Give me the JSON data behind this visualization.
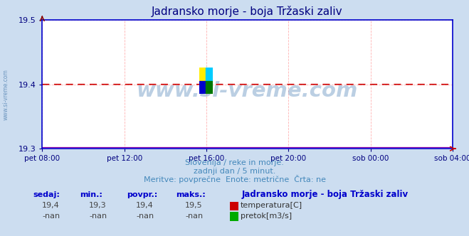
{
  "title": "Jadransko morje - boja Tržaski zaliv",
  "title_color": "#000080",
  "bg_color": "#ccddf0",
  "plot_bg_color": "#ffffff",
  "grid_color": "#ffaaaa",
  "axis_color": "#0000cc",
  "tick_color": "#000080",
  "ylim": [
    19.3,
    19.5
  ],
  "yticks": [
    19.3,
    19.4,
    19.5
  ],
  "xtick_labels": [
    "pet 08:00",
    "pet 12:00",
    "pet 16:00",
    "pet 20:00",
    "sob 00:00",
    "sob 04:00"
  ],
  "xtick_positions": [
    0.0,
    0.2,
    0.4,
    0.6,
    0.8,
    1.0
  ],
  "line_color": "#cc0000",
  "watermark": "www.si-vreme.com",
  "watermark_color": "#5588bb",
  "watermark_alpha": 0.4,
  "side_text": "www.si-vreme.com",
  "side_text_color": "#4477aa",
  "subtitle1": "Slovenija / reke in morje.",
  "subtitle2": "zadnji dan / 5 minut.",
  "subtitle3": "Meritve: povprečne  Enote: metrične  Črta: ne",
  "subtitle_color": "#4488bb",
  "footer_color": "#0000cc",
  "footer_label1": "sedaj:",
  "footer_label2": "min.:",
  "footer_label3": "povpr.:",
  "footer_label4": "maks.:",
  "footer_val_sedaj": "19,4",
  "footer_val_min": "19,3",
  "footer_val_povpr": "19,4",
  "footer_val_maks": "19,5",
  "footer_val_sedaj2": "-nan",
  "footer_val_min2": "-nan",
  "footer_val_povpr2": "-nan",
  "footer_val_maks2": "-nan",
  "legend_title": "Jadransko morje - boja Tržaski zaliv",
  "legend_item1": "temperatura[C]",
  "legend_item1_color": "#cc0000",
  "legend_item2": "pretok[m3/s]",
  "legend_item2_color": "#00aa00"
}
